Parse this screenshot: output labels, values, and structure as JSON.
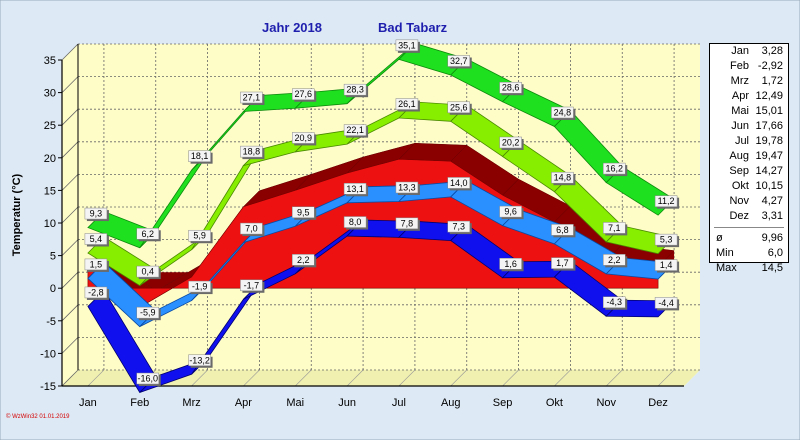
{
  "chart_data": {
    "type": "area",
    "title_left": "Jahr  2018",
    "title_right": "Bad Tabarz",
    "ylabel": "Temperatur (°C)",
    "ylim": [
      -15,
      35
    ],
    "yticks": [
      35,
      30,
      25,
      20,
      15,
      10,
      5,
      0,
      -5,
      -10,
      -15
    ],
    "categories": [
      "Jan",
      "Feb",
      "Mrz",
      "Apr",
      "Mai",
      "Jun",
      "Jul",
      "Aug",
      "Sep",
      "Okt",
      "Nov",
      "Dez"
    ],
    "series": [
      {
        "key": "max",
        "values": [
          9.3,
          6.2,
          18.1,
          27.1,
          27.6,
          28.3,
          35.1,
          32.7,
          28.6,
          24.8,
          16.2,
          11.2
        ],
        "labels": [
          "9,3",
          "6,2",
          "18,1",
          "27,1",
          "27,6",
          "28,3",
          "35,1",
          "32,7",
          "28,6",
          "24,8",
          "16,2",
          "11,2"
        ],
        "color": "#1fe01f",
        "dark": "#0c8a0c"
      },
      {
        "key": "avgmax",
        "values": [
          5.4,
          0.4,
          5.9,
          18.8,
          20.9,
          22.1,
          26.1,
          25.6,
          20.2,
          14.8,
          7.1,
          5.3
        ],
        "labels": [
          "5,4",
          "0,4",
          "5,9",
          "18,8",
          "20,9",
          "22,1",
          "26,1",
          "25,6",
          "20,2",
          "14,8",
          "7,1",
          "5,3"
        ],
        "color": "#88ee00",
        "dark": "#4a8a00"
      },
      {
        "key": "mean",
        "values": [
          3.28,
          -2.92,
          1.72,
          12.49,
          15.01,
          17.66,
          19.78,
          19.47,
          14.27,
          10.15,
          4.27,
          3.31
        ],
        "color": "#ee1111",
        "dark": "#8a0000"
      },
      {
        "key": "avgmin",
        "values": [
          1.5,
          -5.9,
          -1.9,
          7.0,
          9.5,
          13.1,
          13.3,
          14.0,
          9.6,
          6.8,
          2.2,
          1.4
        ],
        "labels": [
          "1,5",
          "-5,9",
          "-1,9",
          "7,0",
          "9,5",
          "13,1",
          "13,3",
          "14,0",
          "9,6",
          "6,8",
          "2,2",
          "1,4"
        ],
        "color": "#2a8fff",
        "dark": "#0a4aa0"
      },
      {
        "key": "min",
        "values": [
          -2.8,
          -16.0,
          -13.2,
          -1.7,
          2.2,
          8.0,
          7.8,
          7.3,
          1.6,
          1.7,
          -4.3,
          -4.4
        ],
        "labels": [
          "-2,8",
          "-16,0",
          "-13,2",
          "-1,7",
          "2,2",
          "8,0",
          "7,8",
          "7,3",
          "1,6",
          "1,7",
          "-4,3",
          "-4,4"
        ],
        "color": "#1010ee",
        "dark": "#00006e"
      }
    ],
    "legend": {
      "months": [
        {
          "m": "Jan",
          "v": "3,28"
        },
        {
          "m": "Feb",
          "v": "-2,92"
        },
        {
          "m": "Mrz",
          "v": "1,72"
        },
        {
          "m": "Apr",
          "v": "12,49"
        },
        {
          "m": "Mai",
          "v": "15,01"
        },
        {
          "m": "Jun",
          "v": "17,66"
        },
        {
          "m": "Jul",
          "v": "19,78"
        },
        {
          "m": "Aug",
          "v": "19,47"
        },
        {
          "m": "Sep",
          "v": "14,27"
        },
        {
          "m": "Okt",
          "v": "10,15"
        },
        {
          "m": "Nov",
          "v": "4,27"
        },
        {
          "m": "Dez",
          "v": "3,31"
        }
      ],
      "stats": [
        {
          "m": "ø",
          "v": "9,96"
        },
        {
          "m": "Min",
          "v": "6,0"
        },
        {
          "m": "Max",
          "v": "14,5"
        }
      ]
    },
    "grid": true
  },
  "watermark": "© WzWin32  01.01.2019"
}
